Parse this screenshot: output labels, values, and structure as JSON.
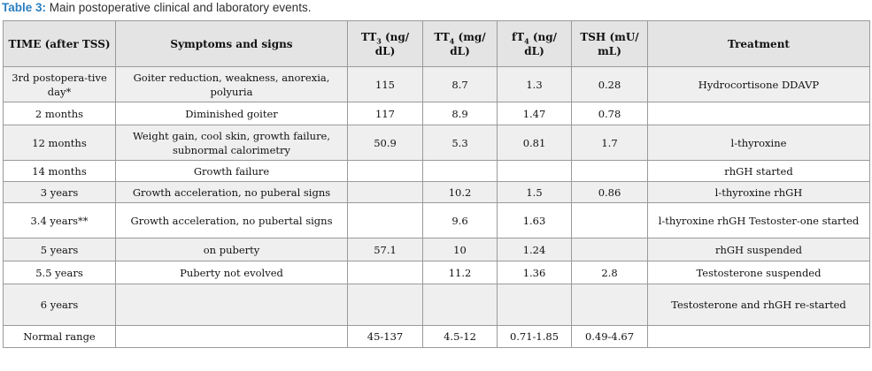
{
  "caption": {
    "label": "Table 3:",
    "text": "Main postoperative clinical and laboratory events."
  },
  "columns": {
    "time": "TIME (after TSS)",
    "symptoms": "Symptoms and signs",
    "tt3_pre": "TT",
    "tt3_sub": "3",
    "tt3_post": " (ng/ dL)",
    "tt4_pre": "TT",
    "tt4_sub": "4",
    "tt4_post": " (mg/ dL)",
    "ft4_pre": "fT",
    "ft4_sub": "4",
    "ft4_post": " (ng/ dL)",
    "tsh": "TSH (mU/ mL)",
    "treatment": "Treatment"
  },
  "rows": [
    {
      "time": "3rd postopera-tive day*",
      "symptoms": "Goiter reduction, weakness, anorexia, polyuria",
      "tt3": "115",
      "tt4": "8.7",
      "ft4": "1.3",
      "tsh": "0.28",
      "treatment": "Hydrocortisone DDAVP"
    },
    {
      "time": "2 months",
      "symptoms": "Diminished goiter",
      "tt3": "117",
      "tt4": "8.9",
      "ft4": "1.47",
      "tsh": "0.78",
      "treatment": ""
    },
    {
      "time": "12 months",
      "symptoms": "Weight gain, cool skin, growth failure, subnormal calorimetry",
      "tt3": "50.9",
      "tt4": "5.3",
      "ft4": "0.81",
      "tsh": "1.7",
      "treatment": "l-thyroxine"
    },
    {
      "time": "14 months",
      "symptoms": "Growth failure",
      "tt3": "",
      "tt4": "",
      "ft4": "",
      "tsh": "",
      "treatment": "rhGH started"
    },
    {
      "time": "3 years",
      "symptoms": "Growth acceleration, no puberal signs",
      "tt3": "",
      "tt4": "10.2",
      "ft4": "1.5",
      "tsh": "0.86",
      "treatment": "l-thyroxine rhGH"
    },
    {
      "time": "3.4 years**",
      "symptoms": "Growth acceleration, no pubertal signs",
      "tt3": "",
      "tt4": "9.6",
      "ft4": "1.63",
      "tsh": "",
      "treatment": "l-thyroxine rhGH Testoster-one started"
    },
    {
      "time": "5 years",
      "symptoms": "on puberty",
      "tt3": "57.1",
      "tt4": "10",
      "ft4": "1.24",
      "tsh": "",
      "treatment": "rhGH suspended"
    },
    {
      "time": "5.5 years",
      "symptoms": "Puberty not evolved",
      "tt3": "",
      "tt4": "11.2",
      "ft4": "1.36",
      "tsh": "2.8",
      "treatment": "Testosterone suspended"
    },
    {
      "time": "6 years",
      "symptoms": "",
      "tt3": "",
      "tt4": "",
      "ft4": "",
      "tsh": "",
      "treatment": "Testosterone and rhGH re-started"
    },
    {
      "time": "Normal range",
      "symptoms": "",
      "tt3": "45-137",
      "tt4": "4.5-12",
      "ft4": "0.71-1.85",
      "tsh": "0.49-4.67",
      "treatment": ""
    }
  ]
}
